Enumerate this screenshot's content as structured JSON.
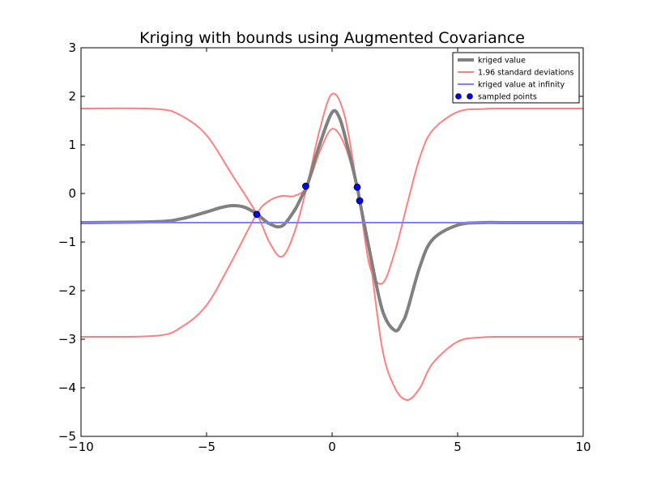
{
  "chart_data": {
    "type": "line",
    "title": "Kriging with bounds using Augmented Covariance",
    "xlabel": "",
    "ylabel": "",
    "xlim": [
      -10,
      10
    ],
    "ylim": [
      -5,
      3
    ],
    "grid": false,
    "legend_position": "top-right",
    "x_ticks": [
      -10,
      -5,
      0,
      5,
      10
    ],
    "x_tick_labels": [
      "−10",
      "−5",
      "0",
      "5",
      "10"
    ],
    "y_ticks": [
      -5,
      -4,
      -3,
      -2,
      -1,
      0,
      1,
      2,
      3
    ],
    "y_tick_labels": [
      "−5",
      "−4",
      "−3",
      "−2",
      "−1",
      "0",
      "1",
      "2",
      "3"
    ],
    "series": [
      {
        "name": "kriged value",
        "kind": "line",
        "color": "#808080",
        "x": [
          -10,
          -7,
          -6,
          -5,
          -4.5,
          -4,
          -3.5,
          -3,
          -2.5,
          -2,
          -1.5,
          -1.2,
          -1,
          -0.5,
          0,
          0.3,
          0.6,
          1,
          1.1,
          1.5,
          2,
          2.5,
          2.8,
          3,
          3.5,
          4,
          5,
          6,
          7,
          10
        ],
        "y": [
          -0.6,
          -0.58,
          -0.52,
          -0.38,
          -0.3,
          -0.25,
          -0.28,
          -0.42,
          -0.62,
          -0.67,
          -0.35,
          -0.05,
          0.15,
          1.0,
          1.67,
          1.55,
          1.0,
          0.13,
          -0.15,
          -1.2,
          -2.4,
          -2.82,
          -2.65,
          -2.4,
          -1.5,
          -0.95,
          -0.65,
          -0.6,
          -0.6,
          -0.6
        ]
      },
      {
        "name": "1.96 standard deviations",
        "kind": "line",
        "color": "#ff7f7f",
        "x": [
          -10,
          -7,
          -6,
          -5,
          -4,
          -3,
          -2.5,
          -2,
          -1.5,
          -1,
          -0.5,
          0,
          0.5,
          1,
          1.1,
          1.5,
          2,
          2.5,
          3,
          3.5,
          4,
          5,
          6,
          7,
          10
        ],
        "y": [
          1.75,
          1.74,
          1.6,
          1.2,
          0.4,
          -0.42,
          -1.0,
          -1.3,
          -0.8,
          0.15,
          1.3,
          2.05,
          1.6,
          0.13,
          -0.15,
          -1.5,
          -1.85,
          -1.2,
          -0.2,
          0.75,
          1.3,
          1.68,
          1.74,
          1.75,
          1.75
        ]
      },
      {
        "name": "",
        "kind": "line",
        "color": "#ff7f7f",
        "x": [
          -10,
          -7,
          -6,
          -5,
          -4,
          -3,
          -2.5,
          -2,
          -1.5,
          -1,
          -0.5,
          0,
          0.5,
          1,
          1.1,
          1.5,
          2,
          2.5,
          3,
          3.5,
          4,
          5,
          6,
          7,
          10
        ],
        "y": [
          -2.95,
          -2.93,
          -2.75,
          -2.3,
          -1.4,
          -0.42,
          -0.15,
          -0.05,
          -0.05,
          0.15,
          0.85,
          1.33,
          1.0,
          0.13,
          -0.15,
          -1.3,
          -3.2,
          -4.0,
          -4.25,
          -4.0,
          -3.5,
          -3.05,
          -2.96,
          -2.95,
          -2.95
        ]
      },
      {
        "name": "kriged value at infinity",
        "kind": "line",
        "color": "#7f7fff",
        "x": [
          -10,
          10
        ],
        "y": [
          -0.6,
          -0.6
        ]
      },
      {
        "name": "sampled points",
        "kind": "scatter",
        "color": "#0000ff",
        "x": [
          -3.0,
          -1.05,
          1.0,
          1.1
        ],
        "y": [
          -0.43,
          0.15,
          0.13,
          -0.15
        ]
      }
    ]
  }
}
